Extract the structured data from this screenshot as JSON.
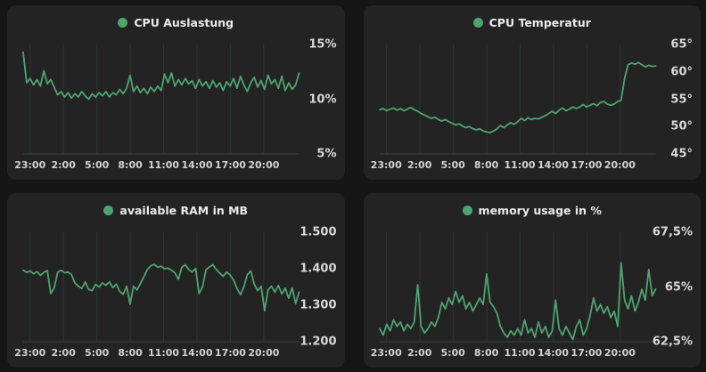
{
  "page": {
    "background": "#161616",
    "panel_background": "#232323",
    "accent_green": "#4fa371",
    "grid_color": "#2c362e",
    "baseline_color": "#3a463d",
    "label_color": "#d6d6d6"
  },
  "x_ticks": [
    "23:00",
    "2:00",
    "5:00",
    "8:00",
    "11:00",
    "14:00",
    "17:00",
    "20:00"
  ],
  "chart_data": [
    {
      "type": "line",
      "title": "CPU Auslastung",
      "unit": "%",
      "legend_position": "top-center",
      "grid": "vertical-only",
      "ylim": [
        5,
        15
      ],
      "y_ticks": [
        {
          "label": "15%",
          "value": 15
        },
        {
          "label": "10%",
          "value": 10
        },
        {
          "label": "5%",
          "value": 5
        }
      ],
      "x_tick_labels": [
        "23:00",
        "2:00",
        "5:00",
        "8:00",
        "11:00",
        "14:00",
        "17:00",
        "20:00"
      ],
      "values": [
        14.3,
        11.5,
        11.9,
        11.3,
        11.8,
        11.2,
        12.6,
        11.4,
        11.8,
        11.1,
        10.4,
        10.7,
        10.2,
        10.6,
        10.1,
        10.5,
        10.2,
        10.7,
        10.3,
        10.0,
        10.5,
        10.2,
        10.6,
        10.3,
        10.7,
        10.2,
        10.6,
        10.4,
        10.9,
        10.5,
        11.0,
        12.2,
        10.7,
        11.2,
        10.6,
        11.0,
        10.5,
        11.1,
        10.7,
        11.2,
        10.8,
        12.3,
        11.5,
        12.4,
        11.2,
        11.8,
        11.3,
        11.9,
        11.4,
        11.7,
        11.0,
        11.8,
        11.2,
        11.6,
        11.0,
        11.7,
        11.1,
        11.5,
        10.8,
        11.6,
        11.2,
        11.9,
        11.0,
        12.1,
        11.3,
        10.7,
        11.5,
        12.0,
        11.1,
        11.7,
        10.9,
        12.2,
        11.4,
        11.8,
        11.0,
        12.1,
        10.8,
        11.5,
        10.9,
        11.3,
        12.4
      ]
    },
    {
      "type": "line",
      "title": "CPU Temperatur",
      "unit": "°",
      "legend_position": "top-center",
      "grid": "vertical-only",
      "ylim": [
        45,
        65
      ],
      "y_ticks": [
        {
          "label": "65°",
          "value": 65
        },
        {
          "label": "60°",
          "value": 60
        },
        {
          "label": "55°",
          "value": 55
        },
        {
          "label": "50°",
          "value": 50
        },
        {
          "label": "45°",
          "value": 45
        }
      ],
      "x_tick_labels": [
        "23:00",
        "2:00",
        "5:00",
        "8:00",
        "11:00",
        "14:00",
        "17:00",
        "20:00"
      ],
      "values": [
        53.1,
        53.3,
        52.9,
        53.2,
        53.4,
        53.0,
        53.3,
        52.9,
        53.2,
        53.5,
        53.1,
        52.8,
        52.4,
        52.1,
        51.8,
        51.5,
        51.7,
        51.3,
        51.0,
        51.3,
        50.9,
        50.6,
        50.3,
        50.5,
        50.1,
        49.8,
        50.0,
        49.6,
        49.4,
        49.6,
        49.2,
        49.0,
        48.9,
        49.2,
        49.6,
        50.2,
        49.8,
        50.3,
        50.7,
        50.4,
        50.9,
        51.5,
        51.1,
        51.6,
        51.3,
        51.5,
        51.4,
        51.7,
        52.0,
        52.4,
        52.8,
        52.4,
        53.0,
        53.4,
        52.9,
        53.2,
        53.6,
        53.3,
        53.6,
        54.0,
        53.6,
        53.9,
        54.2,
        53.8,
        54.4,
        54.6,
        54.1,
        53.9,
        54.1,
        54.6,
        54.8,
        58.8,
        61.3,
        61.6,
        61.4,
        61.7,
        61.3,
        60.9,
        61.2,
        61.0,
        61.1
      ]
    },
    {
      "type": "line",
      "title": "available RAM in MB",
      "unit": "MB",
      "legend_position": "top-center",
      "grid": "vertical-only",
      "ylim": [
        1200,
        1500
      ],
      "y_ticks": [
        {
          "label": "1.500",
          "value": 1500
        },
        {
          "label": "1.400",
          "value": 1400
        },
        {
          "label": "1.300",
          "value": 1300
        },
        {
          "label": "1.200",
          "value": 1200
        }
      ],
      "x_tick_labels": [
        "23:00",
        "2:00",
        "5:00",
        "8:00",
        "11:00",
        "14:00",
        "17:00",
        "20:00"
      ],
      "values": [
        1396,
        1390,
        1394,
        1386,
        1392,
        1382,
        1390,
        1395,
        1332,
        1348,
        1390,
        1396,
        1389,
        1391,
        1384,
        1361,
        1352,
        1346,
        1364,
        1343,
        1340,
        1357,
        1350,
        1361,
        1355,
        1364,
        1348,
        1358,
        1338,
        1330,
        1352,
        1303,
        1352,
        1342,
        1360,
        1378,
        1398,
        1408,
        1412,
        1404,
        1407,
        1400,
        1402,
        1396,
        1389,
        1371,
        1404,
        1411,
        1398,
        1391,
        1401,
        1332,
        1350,
        1397,
        1405,
        1411,
        1398,
        1388,
        1379,
        1391,
        1383,
        1369,
        1346,
        1329,
        1351,
        1384,
        1394,
        1358,
        1340,
        1352,
        1285,
        1342,
        1352,
        1336,
        1354,
        1331,
        1347,
        1319,
        1348,
        1305,
        1336
      ]
    },
    {
      "type": "line",
      "title": "memory usage in %",
      "unit": "%",
      "legend_position": "top-center",
      "grid": "vertical-only",
      "ylim": [
        62.5,
        67.5
      ],
      "y_ticks": [
        {
          "label": "67,5%",
          "value": 67.5
        },
        {
          "label": "65%",
          "value": 65
        },
        {
          "label": "62,5%",
          "value": 62.5
        }
      ],
      "x_tick_labels": [
        "23:00",
        "2:00",
        "5:00",
        "8:00",
        "11:00",
        "14:00",
        "17:00",
        "20:00"
      ],
      "values": [
        63.1,
        62.8,
        63.3,
        63.0,
        63.5,
        63.2,
        63.4,
        63.0,
        63.3,
        63.1,
        63.4,
        65.1,
        63.2,
        62.9,
        63.1,
        63.4,
        63.2,
        63.6,
        64.3,
        64.0,
        64.5,
        64.2,
        64.8,
        64.3,
        64.6,
        64.0,
        64.3,
        63.9,
        64.2,
        64.5,
        64.2,
        65.6,
        64.3,
        64.1,
        63.8,
        63.2,
        62.9,
        62.7,
        63.0,
        62.8,
        63.1,
        62.8,
        63.5,
        62.9,
        63.1,
        62.7,
        63.4,
        62.9,
        63.2,
        62.7,
        63.0,
        64.4,
        63.1,
        62.8,
        63.2,
        62.9,
        62.6,
        63.2,
        63.5,
        62.8,
        63.1,
        63.7,
        64.5,
        63.9,
        64.2,
        63.8,
        64.1,
        63.6,
        63.9,
        63.2,
        66.1,
        64.4,
        64.0,
        64.6,
        63.9,
        64.3,
        64.9,
        64.4,
        65.8,
        64.6,
        64.9
      ]
    }
  ]
}
